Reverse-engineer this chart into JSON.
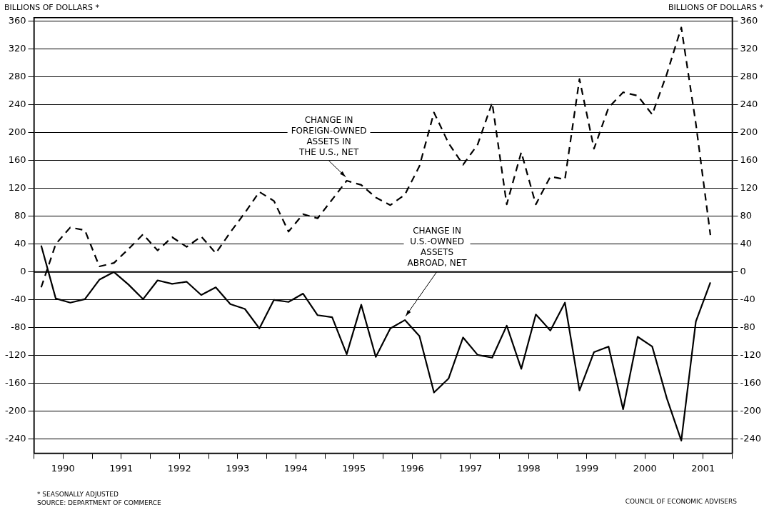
{
  "chart_data": {
    "type": "line",
    "ylabel": "BILLIONS OF DOLLARS *",
    "y2label": "BILLIONS OF DOLLARS *",
    "x": [
      1990.125,
      1990.375,
      1990.625,
      1990.875,
      1991.125,
      1991.375,
      1991.625,
      1991.875,
      1992.125,
      1992.375,
      1992.625,
      1992.875,
      1993.125,
      1993.375,
      1993.625,
      1993.875,
      1994.125,
      1994.375,
      1994.625,
      1994.875,
      1995.125,
      1995.375,
      1995.625,
      1995.875,
      1996.125,
      1996.375,
      1996.625,
      1996.875,
      1997.125,
      1997.375,
      1997.625,
      1997.875,
      1998.125,
      1998.375,
      1998.625,
      1998.875,
      1999.125,
      1999.375,
      1999.625,
      1999.875,
      2000.125,
      2000.375,
      2000.625,
      2000.875,
      2001.125,
      2001.375,
      2001.625
    ],
    "series": [
      {
        "color": "#000000",
        "line_style": "dashed",
        "values": [
          -22,
          40,
          64,
          60,
          8,
          13,
          33,
          54,
          31,
          50,
          36,
          51,
          27,
          57,
          85,
          115,
          102,
          58,
          83,
          77,
          104,
          131,
          125,
          107,
          96,
          111,
          152,
          229,
          185,
          154,
          183,
          243,
          97,
          172,
          97,
          137,
          133,
          277,
          177,
          236,
          258,
          253,
          226,
          284,
          351,
          213,
          53
        ]
      },
      {
        "color": "#000000",
        "line_style": "solid",
        "values": [
          38,
          -38,
          -44,
          -39,
          -11,
          0,
          -18,
          -39,
          -12,
          -17,
          -14,
          -33,
          -22,
          -46,
          -53,
          -81,
          -40,
          -43,
          -31,
          -62,
          -65,
          -118,
          -47,
          -122,
          -81,
          -69,
          -92,
          -173,
          -153,
          -94,
          -119,
          -123,
          -77,
          -139,
          -61,
          -84,
          -44,
          -170,
          -115,
          -107,
          -197,
          -93,
          -107,
          -181,
          -242,
          -71,
          -15
        ]
      }
    ],
    "xlim": [
      1990,
      2002
    ],
    "xticks": [
      {
        "value": 1990,
        "label": null
      },
      {
        "value": 1990.5,
        "label": "1990"
      },
      {
        "value": 1991,
        "label": null
      },
      {
        "value": 1991.5,
        "label": "1991"
      },
      {
        "value": 1992,
        "label": null
      },
      {
        "value": 1992.5,
        "label": "1992"
      },
      {
        "value": 1993,
        "label": null
      },
      {
        "value": 1993.5,
        "label": "1993"
      },
      {
        "value": 1994,
        "label": null
      },
      {
        "value": 1994.5,
        "label": "1994"
      },
      {
        "value": 1995,
        "label": null
      },
      {
        "value": 1995.5,
        "label": "1995"
      },
      {
        "value": 1996,
        "label": null
      },
      {
        "value": 1996.5,
        "label": "1996"
      },
      {
        "value": 1997,
        "label": null
      },
      {
        "value": 1997.5,
        "label": "1997"
      },
      {
        "value": 1998,
        "label": null
      },
      {
        "value": 1998.5,
        "label": "1998"
      },
      {
        "value": 1999,
        "label": null
      },
      {
        "value": 1999.5,
        "label": "1999"
      },
      {
        "value": 2000,
        "label": null
      },
      {
        "value": 2000.5,
        "label": "2000"
      },
      {
        "value": 2001,
        "label": null
      },
      {
        "value": 2001.5,
        "label": "2001"
      },
      {
        "value": 2002,
        "label": null
      }
    ],
    "ylim": [
      -260,
      365
    ],
    "yticks": [
      -240,
      -200,
      -160,
      -120,
      -80,
      -40,
      0,
      40,
      80,
      120,
      160,
      200,
      240,
      280,
      320,
      360
    ],
    "y2lim": [
      -260,
      365
    ],
    "y2ticks": [
      -240,
      -200,
      -160,
      -120,
      -80,
      -40,
      0,
      40,
      80,
      120,
      160,
      200,
      240,
      280,
      320,
      360
    ],
    "grid": "y",
    "legend": false,
    "marker": "none",
    "annotations": [
      {
        "text": "CHANGE IN\nFOREIGN-OWNED\nASSETS IN\nTHE U.S., NET",
        "x": 1995.375,
        "y": 131
      },
      {
        "text": "CHANGE IN\nU.S.-OWNED\nASSETS\nABROAD, NET",
        "x": 1996.375,
        "y": -69
      },
      "* SEASONALLY ADJUSTED",
      "SOURCE: DEPARTMENT OF COMMERCE",
      "COUNCIL OF ECONOMIC ADVISERS"
    ]
  }
}
